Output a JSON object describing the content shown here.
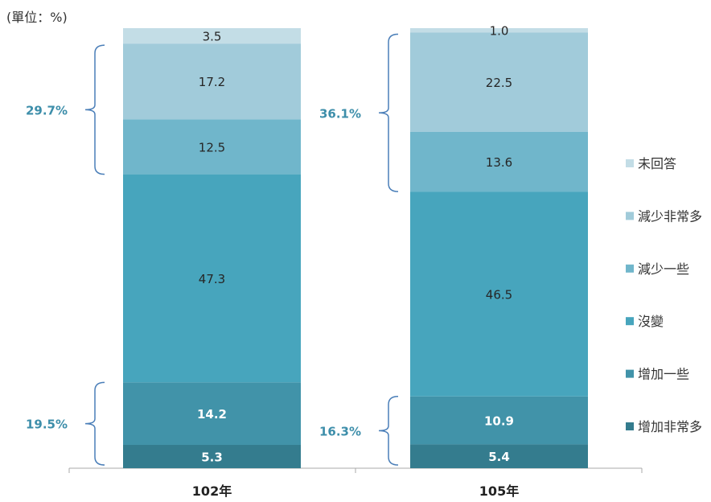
{
  "chart_data": {
    "type": "bar",
    "stacked": true,
    "unit_label": "(單位：%)",
    "categories": [
      "102年",
      "105年"
    ],
    "series": [
      {
        "name": "增加非常多",
        "values": [
          5.3,
          5.4
        ],
        "labels": [
          "5.3",
          "5.4"
        ],
        "color": "#347c8e"
      },
      {
        "name": "增加一些",
        "values": [
          14.2,
          10.9
        ],
        "labels": [
          "14.2",
          "10.9"
        ],
        "color": "#4193a9"
      },
      {
        "name": "沒變",
        "values": [
          47.3,
          46.5
        ],
        "labels": [
          "47.3",
          "46.5"
        ],
        "color": "#47a5bd"
      },
      {
        "name": "減少一些",
        "values": [
          12.5,
          13.6
        ],
        "labels": [
          "12.5",
          "13.6"
        ],
        "color": "#70b6cb"
      },
      {
        "name": "減少非常多",
        "values": [
          17.2,
          22.5
        ],
        "labels": [
          "17.2",
          "22.5"
        ],
        "color": "#a1cbda"
      },
      {
        "name": "未回答",
        "values": [
          3.5,
          1.0
        ],
        "labels": [
          "3.5",
          "1.0"
        ],
        "color": "#c3dde6"
      }
    ],
    "brackets": [
      {
        "category": "102年",
        "group": "decrease",
        "label": "29.7%"
      },
      {
        "category": "102年",
        "group": "increase",
        "label": "19.5%"
      },
      {
        "category": "105年",
        "group": "decrease",
        "label": "36.1%"
      },
      {
        "category": "105年",
        "group": "increase",
        "label": "16.3%"
      }
    ],
    "legend_position": "right",
    "legend_order": [
      "未回答",
      "減少非常多",
      "減少一些",
      "沒變",
      "增加一些",
      "增加非常多"
    ],
    "ylim": [
      0,
      100
    ],
    "grid": false
  }
}
